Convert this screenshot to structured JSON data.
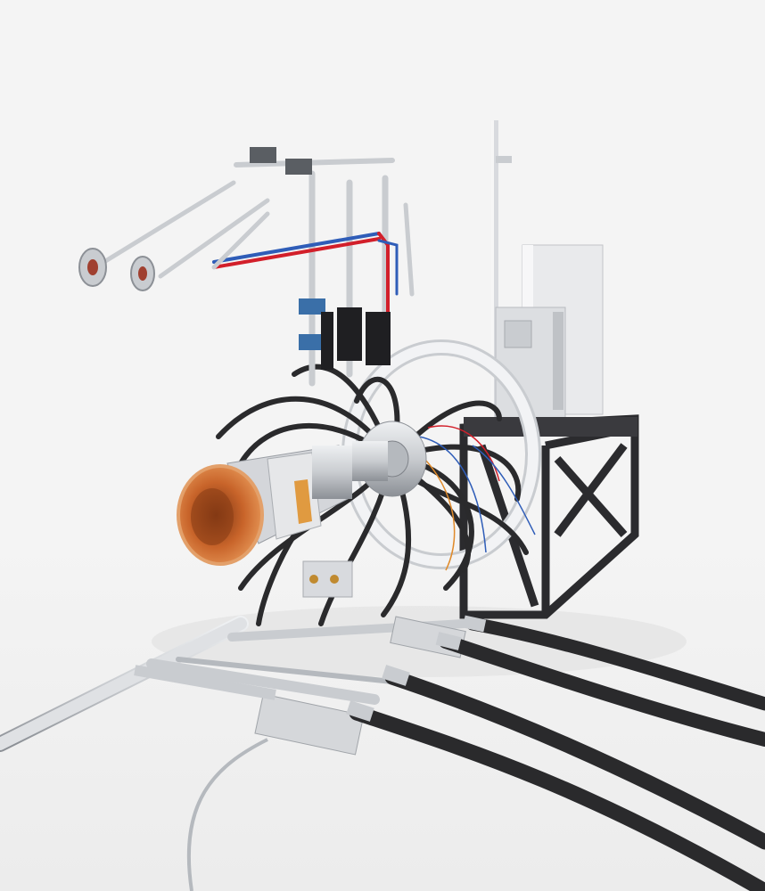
{
  "photo": {
    "subject": "rocket-engine-test-stand",
    "background_color": "#f4f4f4",
    "colors": {
      "frame": "#2b2b2e",
      "hose": "#2a2a2c",
      "steel": "#c9ccd0",
      "steel_dark": "#8c9096",
      "copper": "#c8642a",
      "copper_dark": "#7a3312",
      "cabinet": "#e9eaec",
      "wire_red": "#d21f2a",
      "wire_blue": "#2f5db8",
      "ring": "#f2f3f5"
    }
  }
}
